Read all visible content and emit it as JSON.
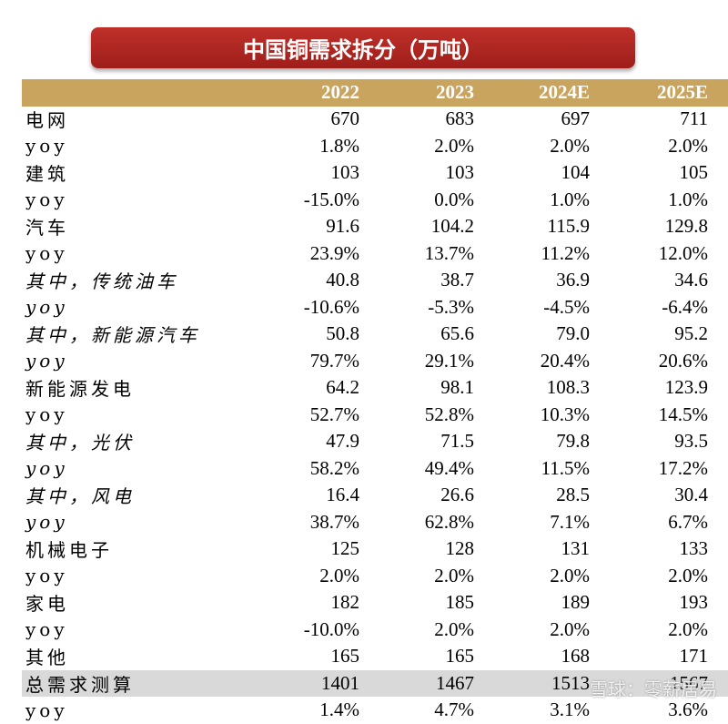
{
  "title": "中国铜需求拆分（万吨）",
  "table": {
    "header": [
      "",
      "2022",
      "2023",
      "2024E",
      "2025E"
    ],
    "rows": [
      [
        "电网",
        "670",
        "683",
        "697",
        "711"
      ],
      [
        "yoy",
        "1.8%",
        "2.0%",
        "2.0%",
        "2.0%"
      ],
      [
        "建筑",
        "103",
        "103",
        "104",
        "105"
      ],
      [
        "yoy",
        "-15.0%",
        "0.0%",
        "1.0%",
        "1.0%"
      ],
      [
        "汽车",
        "91.6",
        "104.2",
        "115.9",
        "129.8"
      ],
      [
        "yoy",
        "23.9%",
        "13.7%",
        "11.2%",
        "12.0%"
      ],
      [
        "其中，传统油车",
        "40.8",
        "38.7",
        "36.9",
        "34.6"
      ],
      [
        "yoy",
        "-10.6%",
        "-5.3%",
        "-4.5%",
        "-6.4%"
      ],
      [
        "其中，新能源汽车",
        "50.8",
        "65.6",
        "79.0",
        "95.2"
      ],
      [
        "yoy",
        "79.7%",
        "29.1%",
        "20.4%",
        "20.6%"
      ],
      [
        "新能源发电",
        "64.2",
        "98.1",
        "108.3",
        "123.9"
      ],
      [
        "yoy",
        "52.7%",
        "52.8%",
        "10.3%",
        "14.5%"
      ],
      [
        "其中，光伏",
        "47.9",
        "71.5",
        "79.8",
        "93.5"
      ],
      [
        "yoy",
        "58.2%",
        "49.4%",
        "11.5%",
        "17.2%"
      ],
      [
        "其中，风电",
        "16.4",
        "26.6",
        "28.5",
        "30.4"
      ],
      [
        "yoy",
        "38.7%",
        "62.8%",
        "7.1%",
        "6.7%"
      ],
      [
        "机械电子",
        "125",
        "128",
        "131",
        "133"
      ],
      [
        "yoy",
        "2.0%",
        "2.0%",
        "2.0%",
        "2.0%"
      ],
      [
        "家电",
        "182",
        "185",
        "189",
        "193"
      ],
      [
        "yoy",
        "-10.0%",
        "2.0%",
        "2.0%",
        "2.0%"
      ],
      [
        "其他",
        "165",
        "165",
        "168",
        "171"
      ],
      [
        "总需求测算",
        "1401",
        "1467",
        "1513",
        "1567"
      ],
      [
        "yoy",
        "1.4%",
        "4.7%",
        "3.1%",
        "3.6%"
      ]
    ]
  },
  "watermark": "雪球：零薪居易"
}
